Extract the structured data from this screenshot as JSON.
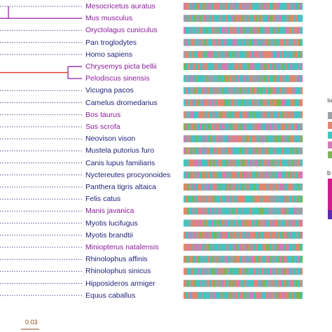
{
  "figure": {
    "taxa": [
      {
        "name": "Mesocricetus auratus",
        "group": "purple"
      },
      {
        "name": "Mus musculus",
        "group": "purple"
      },
      {
        "name": "Oryctolagus cuniculus",
        "group": "purple"
      },
      {
        "name": "Pan troglodytes",
        "group": "navy"
      },
      {
        "name": "Homo sapiens",
        "group": "navy"
      },
      {
        "name": "Chrysemys picta bellii",
        "group": "purple"
      },
      {
        "name": "Pelodiscus sinensis",
        "group": "purple"
      },
      {
        "name": "Vicugna pacos",
        "group": "navy"
      },
      {
        "name": "Camelus dromedarius",
        "group": "navy"
      },
      {
        "name": "Bos taurus",
        "group": "purple"
      },
      {
        "name": "Sus scrofa",
        "group": "purple"
      },
      {
        "name": "Neovison vison",
        "group": "navy"
      },
      {
        "name": "Mustela putorius furo",
        "group": "navy"
      },
      {
        "name": "Canis lupus familiaris",
        "group": "navy"
      },
      {
        "name": "Nyctereutes procyonoides",
        "group": "navy"
      },
      {
        "name": "Panthera tigris altaica",
        "group": "navy"
      },
      {
        "name": "Felis catus",
        "group": "navy"
      },
      {
        "name": "Manis javanica",
        "group": "purple"
      },
      {
        "name": "Myotis lucifugus",
        "group": "navy"
      },
      {
        "name": "Myotis brandtii",
        "group": "navy"
      },
      {
        "name": "Miniopterus natalensis",
        "group": "purple"
      },
      {
        "name": "Rhinolophus affinis",
        "group": "navy"
      },
      {
        "name": "Rhinolophus sinicus",
        "group": "navy"
      },
      {
        "name": "Hipposideros armiger",
        "group": "navy"
      },
      {
        "name": "Equus caballus",
        "group": "navy"
      }
    ],
    "scale_bar_label": "0.03",
    "legend_title_1": "sa",
    "legend_title_2": "b",
    "colors": {
      "navy": "#1f1f7a",
      "purple": "#8b1a9c",
      "branch_red": "#d9341b",
      "branch_purple": "#9b30b0",
      "branch_dotted": "#2a2a7a",
      "scale": "#8b4513",
      "seq_teal": "#48c2c0",
      "seq_salmon": "#e0876f",
      "seq_grey": "#9aa0a6",
      "seq_pink": "#d27bb4",
      "seq_green": "#7db35a"
    }
  }
}
